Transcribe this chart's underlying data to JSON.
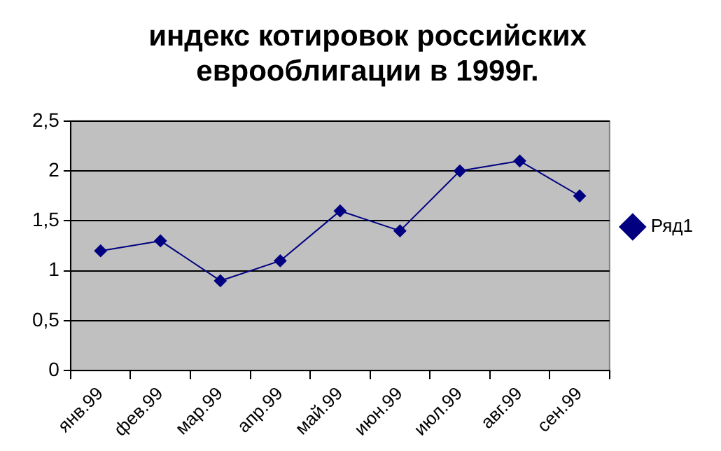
{
  "chart_data": {
    "type": "line",
    "title": "индекс котировок российских еврооблигации в 1999г.",
    "categories": [
      "янв.99",
      "фев.99",
      "мар.99",
      "апр.99",
      "май.99",
      "июн.99",
      "июл.99",
      "авг.99",
      "сен.99"
    ],
    "series": [
      {
        "name": "Ряд1",
        "color": "#000080",
        "values": [
          1.2,
          1.3,
          0.9,
          1.1,
          1.6,
          1.4,
          2,
          2.1,
          1.75
        ]
      }
    ],
    "ylim": [
      0,
      2.5
    ],
    "yticks": [
      0,
      {
        "value": 0.5,
        "label": "0,5"
      },
      1,
      {
        "value": 1.5,
        "label": "1,5"
      },
      2,
      {
        "value": 2.5,
        "label": "2,5"
      }
    ],
    "grid": "y",
    "legend": "right",
    "marker": "diamond",
    "line_style": "solid"
  }
}
